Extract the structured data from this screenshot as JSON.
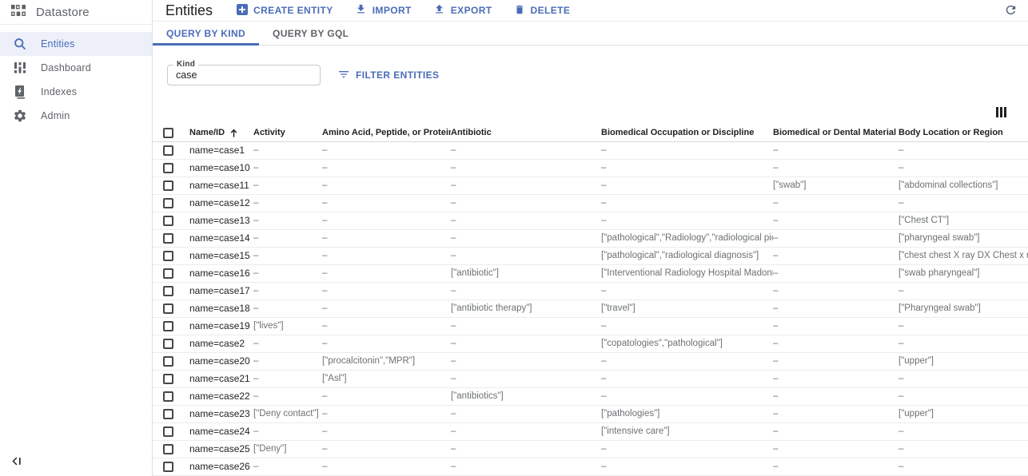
{
  "app": {
    "title": "Datastore"
  },
  "colors": {
    "accent": "#4a6cb7",
    "selected_nav_bg": "#edf0f9",
    "text_dark": "#202124",
    "text_gray": "#5f6368",
    "value_gray": "#6d7175"
  },
  "sidebar": {
    "items": [
      {
        "label": "Entities",
        "icon": "search-icon",
        "selected": true
      },
      {
        "label": "Dashboard",
        "icon": "dashboard-icon",
        "selected": false
      },
      {
        "label": "Indexes",
        "icon": "indexes-icon",
        "selected": false
      },
      {
        "label": "Admin",
        "icon": "gear-icon",
        "selected": false
      }
    ],
    "collapse_icon": "collapse-panel-icon"
  },
  "header": {
    "title": "Entities",
    "actions": [
      {
        "label": "CREATE ENTITY",
        "icon": "add-box-icon"
      },
      {
        "label": "IMPORT",
        "icon": "import-icon"
      },
      {
        "label": "EXPORT",
        "icon": "export-icon"
      },
      {
        "label": "DELETE",
        "icon": "trash-icon"
      }
    ],
    "refresh_icon": "refresh-icon"
  },
  "tabs": [
    {
      "label": "QUERY BY KIND",
      "active": true
    },
    {
      "label": "QUERY BY GQL",
      "active": false
    }
  ],
  "query": {
    "kind_label": "Kind",
    "kind_value": "case",
    "filter_label": "FILTER ENTITIES",
    "filter_icon": "filter-icon"
  },
  "table": {
    "column_selector_icon": "column-selector-icon",
    "sort": {
      "column": "Name/ID",
      "direction": "asc",
      "icon": "sort-ascending-arrow-icon"
    },
    "columns": [
      "Name/ID",
      "Activity",
      "Amino Acid, Peptide, or Protein",
      "Antibiotic",
      "Biomedical Occupation or Discipline",
      "Biomedical or Dental Material",
      "Body Location or Region"
    ],
    "rows": [
      {
        "name_id": "name=case1",
        "values": [
          "–",
          "–",
          "–",
          "–",
          "–",
          "–"
        ]
      },
      {
        "name_id": "name=case10",
        "values": [
          "–",
          "–",
          "–",
          "–",
          "–",
          "–"
        ]
      },
      {
        "name_id": "name=case11",
        "values": [
          "–",
          "–",
          "–",
          "–",
          "[\"swab\"]",
          "[\"abdominal collections\"]"
        ]
      },
      {
        "name_id": "name=case12",
        "values": [
          "–",
          "–",
          "–",
          "–",
          "–",
          "–"
        ]
      },
      {
        "name_id": "name=case13",
        "values": [
          "–",
          "–",
          "–",
          "–",
          "–",
          "[\"Chest CT\"]"
        ]
      },
      {
        "name_id": "name=case14",
        "values": [
          "–",
          "–",
          "–",
          "[\"pathological\",\"Radiology\",\"radiological pictur...",
          "–",
          "[\"pharyngeal swab\"]"
        ]
      },
      {
        "name_id": "name=case15",
        "values": [
          "–",
          "–",
          "–",
          "[\"pathological\",\"radiological diagnosis\"]",
          "–",
          "[\"chest chest X ray DX Chest x ray"
        ]
      },
      {
        "name_id": "name=case16",
        "values": [
          "–",
          "–",
          "[\"antibiotic\"]",
          "[\"Interventional Radiology Hospital Madonna\"]",
          "–",
          "[\"swab pharyngeal\"]"
        ]
      },
      {
        "name_id": "name=case17",
        "values": [
          "–",
          "–",
          "–",
          "–",
          "–",
          "–"
        ]
      },
      {
        "name_id": "name=case18",
        "values": [
          "–",
          "–",
          "[\"antibiotic therapy\"]",
          "[\"travel\"]",
          "–",
          "[\"Pharyngeal swab\"]"
        ]
      },
      {
        "name_id": "name=case19",
        "values": [
          "[\"lives\"]",
          "–",
          "–",
          "–",
          "–",
          "–"
        ]
      },
      {
        "name_id": "name=case2",
        "values": [
          "–",
          "–",
          "–",
          "[\"copatologies\",\"pathological\"]",
          "–",
          "–"
        ]
      },
      {
        "name_id": "name=case20",
        "values": [
          "–",
          "[\"procalcitonin\",\"MPR\"]",
          "–",
          "–",
          "–",
          "[\"upper\"]"
        ]
      },
      {
        "name_id": "name=case21",
        "values": [
          "–",
          "[\"Asl\"]",
          "–",
          "–",
          "–",
          "–"
        ]
      },
      {
        "name_id": "name=case22",
        "values": [
          "–",
          "–",
          "[\"antibiotics\"]",
          "–",
          "–",
          "–"
        ]
      },
      {
        "name_id": "name=case23",
        "values": [
          "[\"Deny contact\"]",
          "–",
          "–",
          "[\"pathologies\"]",
          "–",
          "[\"upper\"]"
        ]
      },
      {
        "name_id": "name=case24",
        "values": [
          "–",
          "–",
          "–",
          "[\"intensive care\"]",
          "–",
          "–"
        ]
      },
      {
        "name_id": "name=case25",
        "values": [
          "[\"Deny\"]",
          "–",
          "–",
          "–",
          "–",
          "–"
        ]
      },
      {
        "name_id": "name=case26",
        "values": [
          "–",
          "–",
          "–",
          "–",
          "–",
          "–"
        ]
      }
    ]
  }
}
